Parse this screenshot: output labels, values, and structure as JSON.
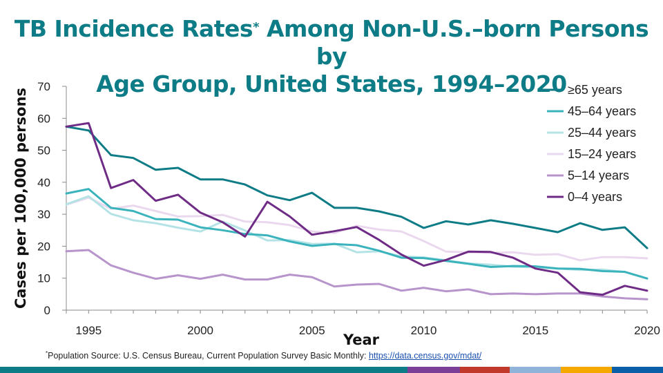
{
  "title": {
    "line1_a": "TB Incidence Rates",
    "marker": "*",
    "line1_b": " Among Non-U.S.–born Persons by",
    "line2": "Age Group, United States, 1994–2020"
  },
  "footnote": {
    "marker": "*",
    "text": "Population Source: U.S. Census Bureau, Current Population Survey Basic Monthly: ",
    "link": "https://data.census.gov/mdat/"
  },
  "colors": {
    "title": "#0e7c86",
    "bottom_bar": [
      "#0e7c86",
      "#7b3f98",
      "#c0392b",
      "#8fb3d9",
      "#f5a800",
      "#0a5fa8"
    ]
  },
  "chart_data": {
    "type": "line",
    "title": "TB Incidence Rates Among Non-U.S.–born Persons by Age Group, United States, 1994–2020",
    "xlabel": "Year",
    "ylabel": "Cases per 100,000 persons",
    "xlim": [
      1994,
      2020
    ],
    "ylim": [
      0,
      70
    ],
    "xticks": [
      1995,
      2000,
      2005,
      2010,
      2015,
      2020
    ],
    "yticks": [
      0,
      10,
      20,
      30,
      40,
      50,
      60,
      70
    ],
    "legend_position": "top-right",
    "x": [
      1994,
      1995,
      1996,
      1997,
      1998,
      1999,
      2000,
      2001,
      2002,
      2003,
      2004,
      2005,
      2006,
      2007,
      2008,
      2009,
      2010,
      2011,
      2012,
      2013,
      2014,
      2015,
      2016,
      2017,
      2018,
      2019,
      2020
    ],
    "series": [
      {
        "name": "≥65 years",
        "color": "#0e7c86",
        "values": [
          57.4,
          56.2,
          48.5,
          47.6,
          43.9,
          44.5,
          40.9,
          40.9,
          39.3,
          35.9,
          34.4,
          36.7,
          32.0,
          32.0,
          30.9,
          29.2,
          25.7,
          27.8,
          26.8,
          28.1,
          27.0,
          25.7,
          24.4,
          27.2,
          25.1,
          25.9,
          19.4
        ]
      },
      {
        "name": "45–64 years",
        "color": "#3bb3bd",
        "values": [
          36.5,
          37.9,
          32.0,
          31.0,
          28.5,
          28.3,
          25.9,
          25.0,
          23.8,
          23.4,
          21.5,
          20.1,
          20.7,
          20.3,
          18.6,
          16.4,
          16.3,
          15.4,
          14.5,
          13.5,
          13.8,
          13.7,
          13.0,
          12.9,
          12.2,
          12.0,
          9.9
        ]
      },
      {
        "name": "25–44 years",
        "color": "#b4e3e6",
        "values": [
          33.1,
          35.6,
          30.1,
          28.1,
          27.2,
          25.8,
          24.6,
          27.7,
          24.9,
          21.8,
          21.9,
          20.7,
          20.8,
          18.1,
          18.4,
          16.8,
          16.5,
          15.6,
          14.6,
          14.2,
          13.6,
          13.4,
          13.0,
          12.6,
          12.7,
          11.9,
          9.9
        ]
      },
      {
        "name": "15–24 years",
        "color": "#ead9ee",
        "values": [
          33.0,
          35.2,
          31.7,
          32.7,
          31.0,
          29.3,
          29.4,
          29.8,
          27.7,
          27.5,
          26.6,
          24.6,
          24.1,
          26.4,
          25.2,
          24.6,
          21.6,
          18.3,
          18.1,
          17.9,
          18.1,
          17.3,
          17.5,
          15.6,
          16.6,
          16.6,
          16.2
        ]
      },
      {
        "name": "5–14 years",
        "color": "#b794cb",
        "values": [
          18.4,
          18.8,
          14.0,
          11.7,
          9.8,
          10.9,
          9.8,
          11.1,
          9.6,
          9.6,
          11.1,
          10.3,
          7.4,
          8.0,
          8.2,
          6.1,
          7.0,
          5.9,
          6.5,
          5.0,
          5.2,
          5.0,
          5.2,
          5.2,
          4.3,
          3.7,
          3.4
        ]
      },
      {
        "name": "0–4 years",
        "color": "#6f2c86",
        "values": [
          57.4,
          58.5,
          38.2,
          40.7,
          34.2,
          36.1,
          30.5,
          27.5,
          23.0,
          33.9,
          29.3,
          23.6,
          24.7,
          26.0,
          22.0,
          17.4,
          13.9,
          15.7,
          18.3,
          18.2,
          16.4,
          13.0,
          11.7,
          5.6,
          4.8,
          7.6,
          6.1
        ]
      }
    ]
  }
}
